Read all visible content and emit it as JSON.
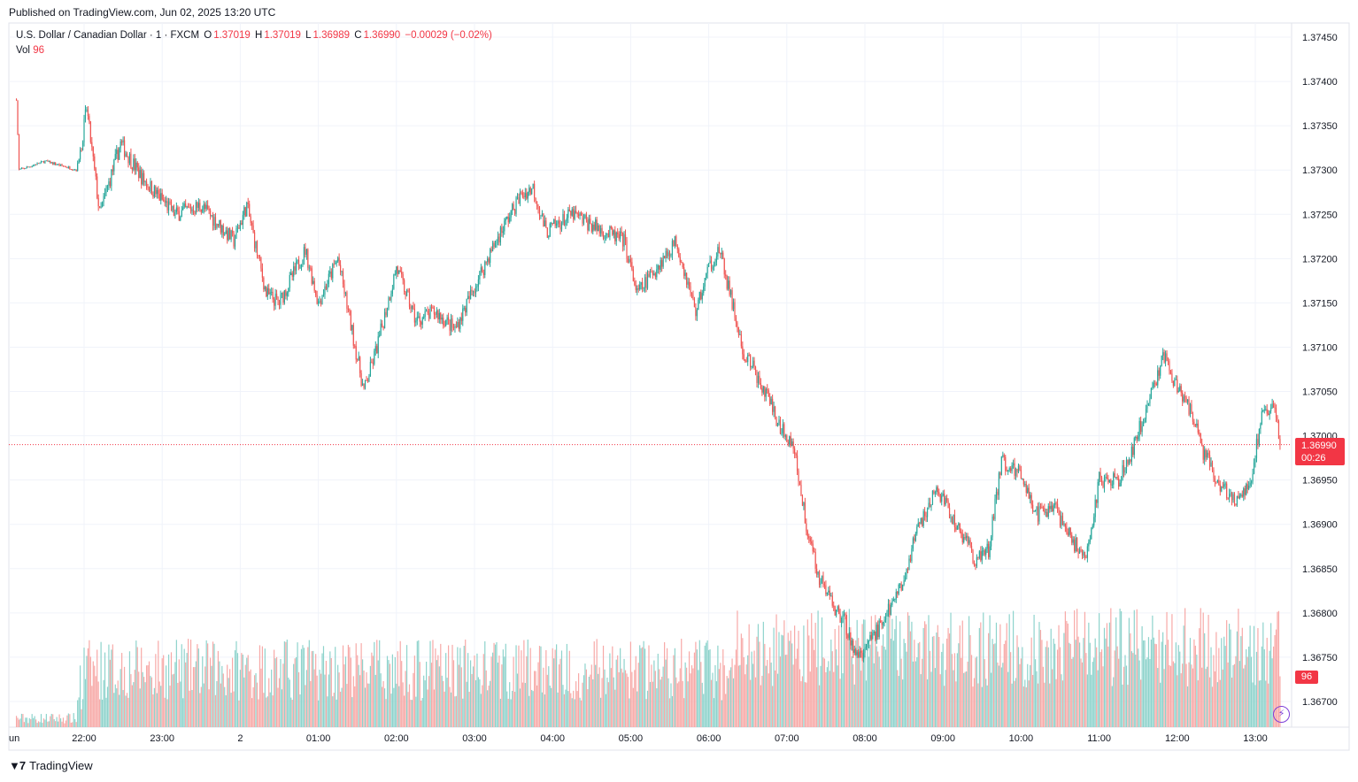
{
  "header": {
    "published": "Published on TradingView.com, Jun 02, 2025 13:20 UTC"
  },
  "legend": {
    "symbol": "U.S. Dollar / Canadian Dollar · 1 · FXCM",
    "open_label": "O",
    "open": "1.37019",
    "high_label": "H",
    "high": "1.37019",
    "low_label": "L",
    "low": "1.36989",
    "close_label": "C",
    "close": "1.36990",
    "change": "−0.00029 (−0.02%)",
    "vol_label": "Vol",
    "vol": "96"
  },
  "price_tag": {
    "price": "1.36990",
    "countdown": "00:26"
  },
  "vol_tag": "96",
  "footer": {
    "brand": "TradingView"
  },
  "colors": {
    "up": "#26a69a",
    "down": "#ef5350",
    "up_vol": "#8ed3cc",
    "down_vol": "#f7a9a7",
    "last_price": "#f23645"
  },
  "chart_data": {
    "type": "candlestick",
    "y_axis_ticks": [
      "1.37450",
      "1.37400",
      "1.37350",
      "1.37300",
      "1.37250",
      "1.37200",
      "1.37150",
      "1.37100",
      "1.37050",
      "1.37000",
      "1.36950",
      "1.36900",
      "1.36850",
      "1.36800",
      "1.36750",
      "1.36700"
    ],
    "ylim": [
      1.3667,
      1.3746
    ],
    "x_axis_ticks": [
      "Jun",
      "22:00",
      "23:00",
      "2",
      "01:00",
      "02:00",
      "03:00",
      "04:00",
      "05:00",
      "06:00",
      "07:00",
      "08:00",
      "09:00",
      "10:00",
      "11:00",
      "12:00",
      "13:00"
    ],
    "last_price": 1.3699,
    "series_close_keypoints": [
      {
        "time": "21:08",
        "close": 1.3738
      },
      {
        "time": "21:10",
        "close": 1.373
      },
      {
        "time": "21:30",
        "close": 1.3731
      },
      {
        "time": "21:55",
        "close": 1.373
      },
      {
        "time": "22:02",
        "close": 1.3737
      },
      {
        "time": "22:12",
        "close": 1.3725
      },
      {
        "time": "22:28",
        "close": 1.3733
      },
      {
        "time": "22:45",
        "close": 1.3729
      },
      {
        "time": "23:10",
        "close": 1.3725
      },
      {
        "time": "23:30",
        "close": 1.3726
      },
      {
        "time": "23:55",
        "close": 1.3722
      },
      {
        "time": "00:05",
        "close": 1.3726
      },
      {
        "time": "00:20",
        "close": 1.3716
      },
      {
        "time": "00:30",
        "close": 1.3715
      },
      {
        "time": "00:50",
        "close": 1.3721
      },
      {
        "time": "01:00",
        "close": 1.3715
      },
      {
        "time": "01:15",
        "close": 1.372
      },
      {
        "time": "01:35",
        "close": 1.3705
      },
      {
        "time": "01:45",
        "close": 1.371
      },
      {
        "time": "02:00",
        "close": 1.3719
      },
      {
        "time": "02:15",
        "close": 1.3713
      },
      {
        "time": "02:30",
        "close": 1.3714
      },
      {
        "time": "02:45",
        "close": 1.3712
      },
      {
        "time": "03:10",
        "close": 1.372
      },
      {
        "time": "03:20",
        "close": 1.3723
      },
      {
        "time": "03:35",
        "close": 1.3727
      },
      {
        "time": "03:45",
        "close": 1.3728
      },
      {
        "time": "03:55",
        "close": 1.3723
      },
      {
        "time": "04:15",
        "close": 1.3725
      },
      {
        "time": "04:40",
        "close": 1.3723
      },
      {
        "time": "04:55",
        "close": 1.3722
      },
      {
        "time": "05:05",
        "close": 1.3716
      },
      {
        "time": "05:20",
        "close": 1.3719
      },
      {
        "time": "05:35",
        "close": 1.3722
      },
      {
        "time": "05:50",
        "close": 1.3714
      },
      {
        "time": "06:00",
        "close": 1.3719
      },
      {
        "time": "06:08",
        "close": 1.3721
      },
      {
        "time": "06:18",
        "close": 1.3715
      },
      {
        "time": "06:25",
        "close": 1.371
      },
      {
        "time": "06:40",
        "close": 1.3706
      },
      {
        "time": "06:55",
        "close": 1.3701
      },
      {
        "time": "07:05",
        "close": 1.3699
      },
      {
        "time": "07:15",
        "close": 1.369
      },
      {
        "time": "07:25",
        "close": 1.3684
      },
      {
        "time": "07:35",
        "close": 1.3681
      },
      {
        "time": "07:45",
        "close": 1.3679
      },
      {
        "time": "07:50",
        "close": 1.3676
      },
      {
        "time": "07:55",
        "close": 1.3675
      },
      {
        "time": "08:10",
        "close": 1.3678
      },
      {
        "time": "08:25",
        "close": 1.3682
      },
      {
        "time": "08:40",
        "close": 1.3689
      },
      {
        "time": "08:55",
        "close": 1.3694
      },
      {
        "time": "09:10",
        "close": 1.369
      },
      {
        "time": "09:25",
        "close": 1.3686
      },
      {
        "time": "09:35",
        "close": 1.3687
      },
      {
        "time": "09:45",
        "close": 1.3697
      },
      {
        "time": "10:00",
        "close": 1.3696
      },
      {
        "time": "10:10",
        "close": 1.3691
      },
      {
        "time": "10:25",
        "close": 1.3692
      },
      {
        "time": "10:40",
        "close": 1.3688
      },
      {
        "time": "10:50",
        "close": 1.3686
      },
      {
        "time": "11:00",
        "close": 1.3695
      },
      {
        "time": "11:15",
        "close": 1.3695
      },
      {
        "time": "11:25",
        "close": 1.3698
      },
      {
        "time": "11:40",
        "close": 1.3705
      },
      {
        "time": "11:50",
        "close": 1.3709
      },
      {
        "time": "11:58",
        "close": 1.3706
      },
      {
        "time": "12:10",
        "close": 1.3703
      },
      {
        "time": "12:20",
        "close": 1.3698
      },
      {
        "time": "12:35",
        "close": 1.3694
      },
      {
        "time": "12:45",
        "close": 1.3693
      },
      {
        "time": "12:55",
        "close": 1.3694
      },
      {
        "time": "13:05",
        "close": 1.3702
      },
      {
        "time": "13:15",
        "close": 1.3703
      },
      {
        "time": "13:19",
        "close": 1.3699
      }
    ]
  }
}
